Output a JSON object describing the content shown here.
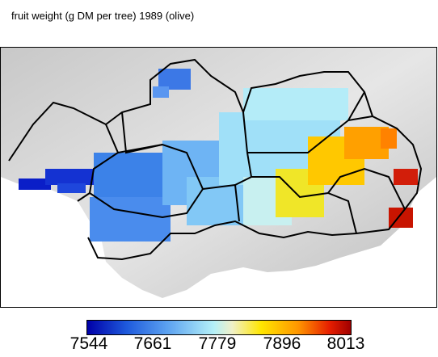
{
  "title": "fruit weight (g DM per tree) 1989 (olive)",
  "legend": {
    "min": 7544,
    "max": 8013,
    "ticks": [
      "7544",
      "7661",
      "7779",
      "7896",
      "8013"
    ],
    "colors": [
      "#0000a8",
      "#1e5adc",
      "#5aa0f0",
      "#b4f0f8",
      "#ffe600",
      "#ff9600",
      "#e61e00",
      "#a00000"
    ]
  },
  "map": {
    "background": "#d9d9d9",
    "sea": "#ffffff",
    "boundary_color": "#000000"
  }
}
